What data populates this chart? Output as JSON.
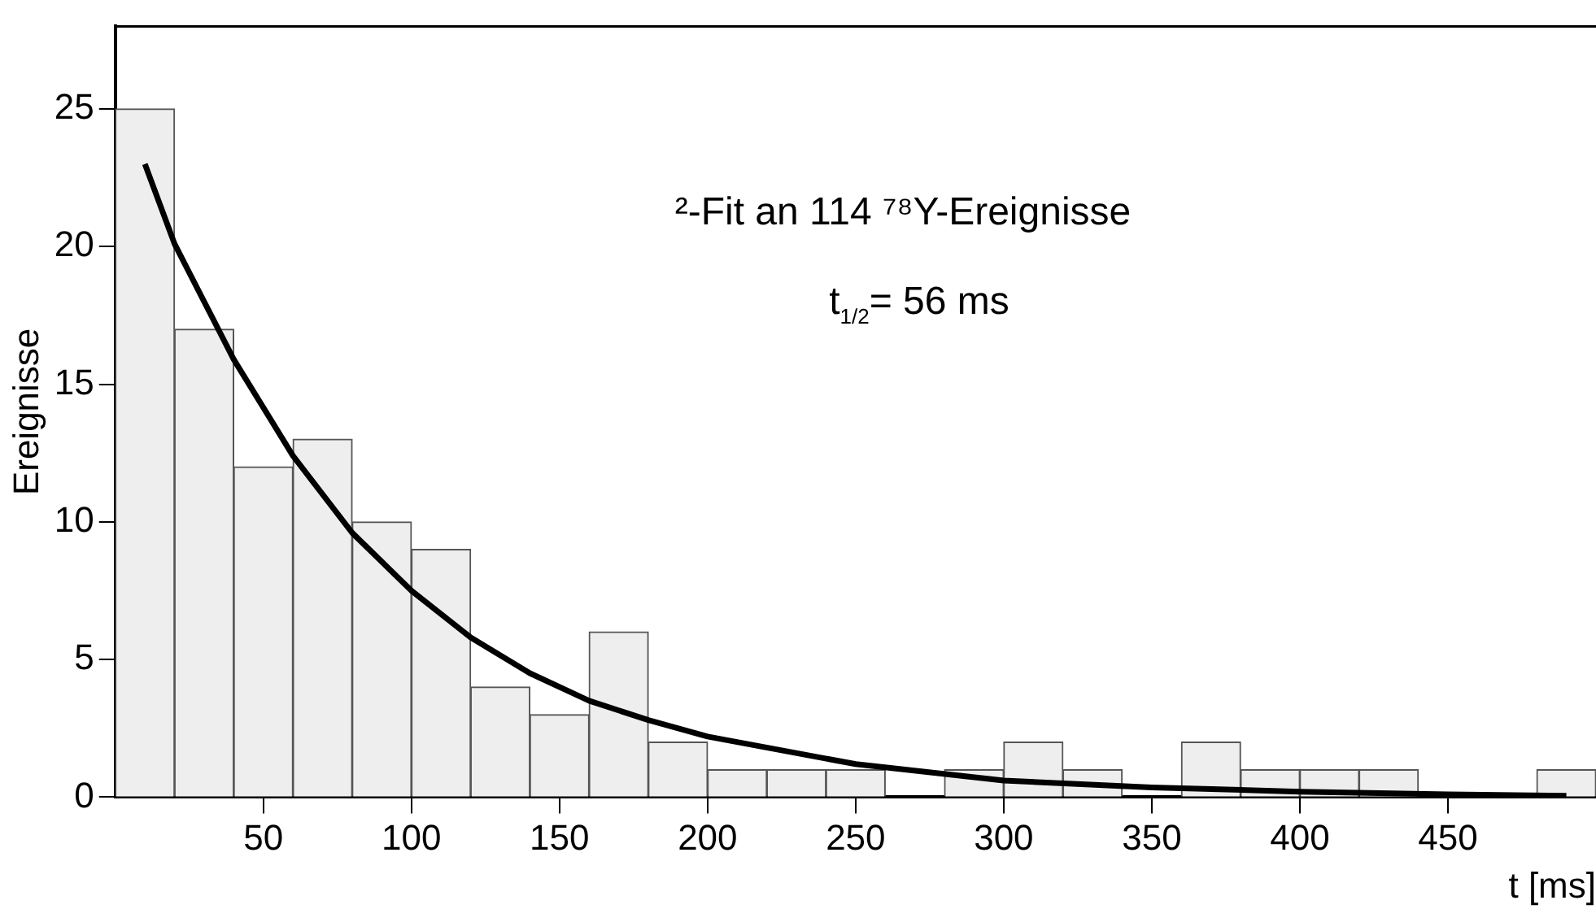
{
  "chart_data": {
    "type": "histogram",
    "xlabel": "t [ms]",
    "ylabel": "Ereignisse",
    "annotations": [
      "²-Fit an 114 ⁷⁸Y-Ereignisse",
      "t$_{1/2}$= 56 ms"
    ],
    "bins": [
      0,
      20,
      40,
      60,
      80,
      100,
      120,
      140,
      160,
      180,
      200,
      220,
      240,
      260,
      280,
      300,
      320,
      340,
      360,
      380,
      400,
      420,
      440,
      460,
      480,
      500
    ],
    "series": [
      {
        "color": "#eeeeee",
        "values": [
          25,
          17,
          12,
          13,
          10,
          9,
          4,
          3,
          6,
          2,
          1,
          1,
          1,
          0,
          1,
          2,
          1,
          0,
          2,
          1,
          1,
          1,
          0,
          0,
          1
        ]
      },
      {
        "type": "line",
        "color": "#000000",
        "x": [
          10,
          20,
          40,
          60,
          80,
          100,
          120,
          140,
          160,
          180,
          200,
          250,
          300,
          350,
          400,
          450,
          490
        ],
        "values": [
          23,
          20.1,
          15.9,
          12.4,
          9.6,
          7.5,
          5.8,
          4.5,
          3.5,
          2.8,
          2.2,
          1.2,
          0.6,
          0.35,
          0.2,
          0.1,
          0.05
        ]
      }
    ],
    "xlim": [
      0,
      500
    ],
    "xticks": [
      50,
      100,
      150,
      200,
      250,
      300,
      350,
      400,
      450
    ],
    "ylim": [
      0,
      28
    ],
    "yticks": [
      0,
      5,
      10,
      15,
      20,
      25
    ]
  }
}
